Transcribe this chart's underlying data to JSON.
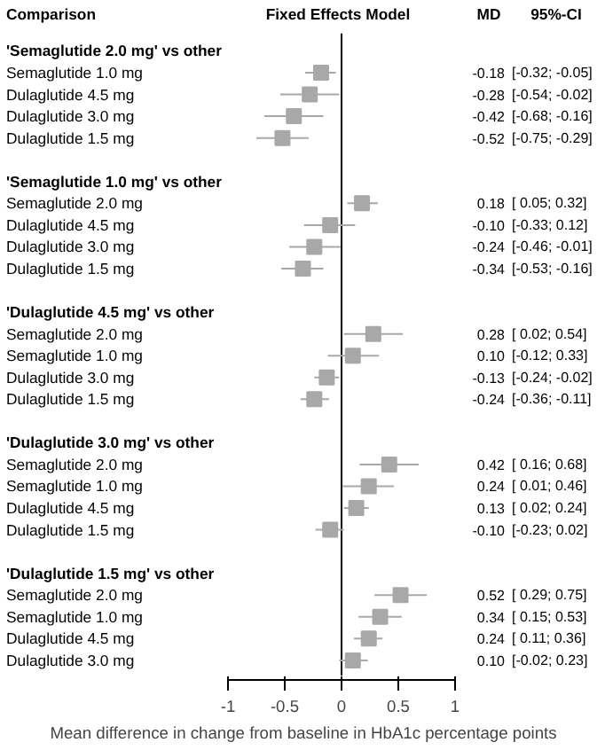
{
  "chart_data": {
    "type": "scatter",
    "orientation": "horizontal",
    "marker": "square",
    "grid": false,
    "xlabel": "Mean difference in change from baseline in HbA1c percentage points",
    "annotations": [
      "Comparison",
      "Fixed Effects Model",
      "MD",
      "95%-CI",
      "[-0.32; -0.05]",
      "[-0.54; -0.02]",
      "[-0.68; -0.16]",
      "[-0.75; -0.29]",
      "[ 0.05; 0.32]",
      "[-0.33; 0.12]",
      "[-0.46; -0.01]",
      "[-0.53; -0.16]",
      "[ 0.02; 0.54]",
      "[-0.12; 0.33]",
      "[-0.24; -0.02]",
      "[-0.36; -0.11]",
      "[ 0.16; 0.68]",
      "[ 0.01; 0.46]",
      "[ 0.02; 0.24]",
      "[-0.23; 0.02]",
      "[ 0.29; 0.75]",
      "[ 0.15; 0.53]",
      "[ 0.11; 0.36]",
      "[-0.02; 0.23]"
    ],
    "xlim": [
      -1,
      1
    ],
    "xticks": [
      -1,
      -0.5,
      0,
      0.5,
      1
    ],
    "ref_lines": [
      {
        "axis": "x",
        "value": 0,
        "color": "#000000"
      }
    ],
    "categories": [
      "'Semaglutide 2.0 mg' vs other",
      "Semaglutide 1.0 mg",
      "Dulaglutide 4.5 mg",
      "Dulaglutide 3.0 mg",
      "Dulaglutide 1.5 mg",
      "'Semaglutide 1.0 mg' vs other",
      "Semaglutide 2.0 mg",
      "Dulaglutide 4.5 mg",
      "Dulaglutide 3.0 mg",
      "Dulaglutide 1.5 mg",
      "'Dulaglutide 4.5 mg' vs other",
      "Semaglutide 2.0 mg",
      "Semaglutide 1.0 mg",
      "Dulaglutide 3.0 mg",
      "Dulaglutide 1.5 mg",
      "'Dulaglutide 3.0 mg' vs other",
      "Semaglutide 2.0 mg",
      "Semaglutide 1.0 mg",
      "Dulaglutide 4.5 mg",
      "Dulaglutide 1.5 mg",
      "'Dulaglutide 1.5 mg' vs other",
      "Semaglutide 2.0 mg",
      "Semaglutide 1.0 mg",
      "Dulaglutide 4.5 mg",
      "Dulaglutide 3.0 mg"
    ],
    "series": [
      {
        "color": "#a8a8a8",
        "value_labels": [
          null,
          "-0.18",
          "-0.28",
          "-0.42",
          "-0.52",
          null,
          "0.18",
          "-0.10",
          "-0.24",
          "-0.34",
          null,
          "0.28",
          "0.10",
          "-0.13",
          "-0.24",
          null,
          "0.42",
          "0.24",
          "0.13",
          "-0.10",
          null,
          "0.52",
          "0.34",
          "0.24",
          "0.10"
        ],
        "values": [
          null,
          -0.18,
          -0.28,
          -0.42,
          -0.52,
          null,
          0.18,
          -0.1,
          -0.24,
          -0.34,
          null,
          0.28,
          0.1,
          -0.13,
          -0.24,
          null,
          0.42,
          0.24,
          0.13,
          -0.1,
          null,
          0.52,
          0.34,
          0.24,
          0.1
        ],
        "errors": [
          null,
          [
            -0.32,
            -0.05
          ],
          [
            -0.54,
            -0.02
          ],
          [
            -0.68,
            -0.16
          ],
          [
            -0.75,
            -0.29
          ],
          null,
          [
            0.05,
            0.32
          ],
          [
            -0.33,
            0.12
          ],
          [
            -0.46,
            -0.01
          ],
          [
            -0.53,
            -0.16
          ],
          null,
          [
            0.02,
            0.54
          ],
          [
            -0.12,
            0.33
          ],
          [
            -0.24,
            -0.02
          ],
          [
            -0.36,
            -0.11
          ],
          null,
          [
            0.16,
            0.68
          ],
          [
            0.01,
            0.46
          ],
          [
            0.02,
            0.24
          ],
          [
            -0.23,
            0.02
          ],
          null,
          [
            0.29,
            0.75
          ],
          [
            0.15,
            0.53
          ],
          [
            0.11,
            0.36
          ],
          [
            -0.02,
            0.23
          ]
        ]
      }
    ]
  }
}
